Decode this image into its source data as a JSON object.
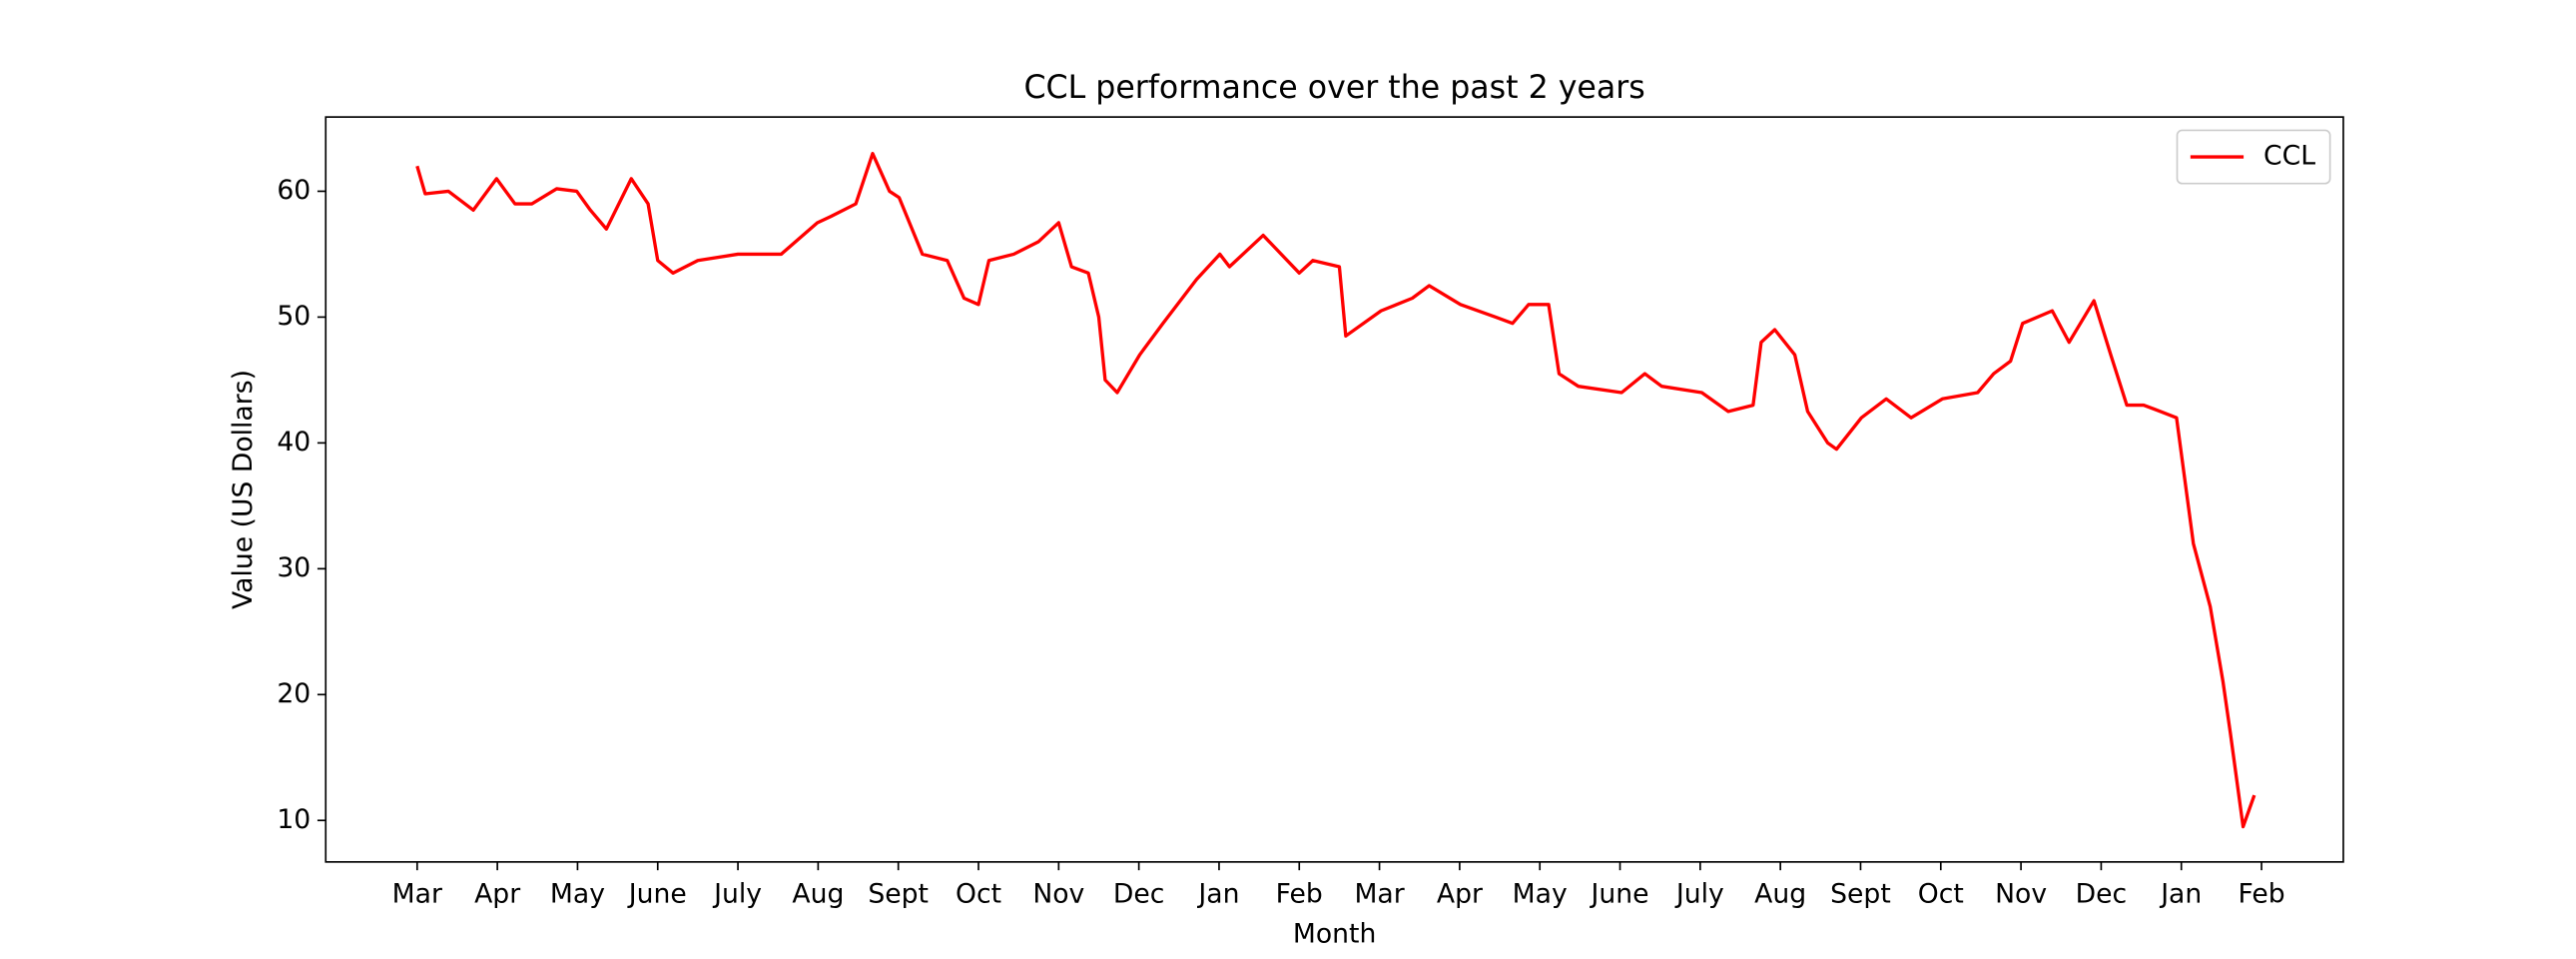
{
  "chart_data": {
    "type": "line",
    "title": "CCL performance over the past 2 years",
    "x_label": "Month",
    "y_label": "Value (US Dollars)",
    "xlim": [
      -1.14,
      24.02
    ],
    "ylim": [
      6.7,
      65.9
    ],
    "xticks": [
      {
        "value": 0,
        "label": "Mar"
      },
      {
        "value": 1,
        "label": "Apr"
      },
      {
        "value": 2,
        "label": "May"
      },
      {
        "value": 3,
        "label": "June"
      },
      {
        "value": 4,
        "label": "July"
      },
      {
        "value": 5,
        "label": "Aug"
      },
      {
        "value": 6,
        "label": "Sept"
      },
      {
        "value": 7,
        "label": "Oct"
      },
      {
        "value": 8,
        "label": "Nov"
      },
      {
        "value": 9,
        "label": "Dec"
      },
      {
        "value": 10,
        "label": "Jan"
      },
      {
        "value": 11,
        "label": "Feb"
      },
      {
        "value": 12,
        "label": "Mar"
      },
      {
        "value": 13,
        "label": "Apr"
      },
      {
        "value": 14,
        "label": "May"
      },
      {
        "value": 15,
        "label": "June"
      },
      {
        "value": 16,
        "label": "July"
      },
      {
        "value": 17,
        "label": "Aug"
      },
      {
        "value": 18,
        "label": "Sept"
      },
      {
        "value": 19,
        "label": "Oct"
      },
      {
        "value": 20,
        "label": "Nov"
      },
      {
        "value": 21,
        "label": "Dec"
      },
      {
        "value": 22,
        "label": "Jan"
      },
      {
        "value": 23,
        "label": "Feb"
      }
    ],
    "yticks": [
      10,
      20,
      30,
      40,
      50,
      60
    ],
    "grid": false,
    "legend": "upper right",
    "x": [
      0,
      0.1,
      0.39,
      0.7,
      0.99,
      1.22,
      1.43,
      1.74,
      1.99,
      2.16,
      2.36,
      2.67,
      2.88,
      3.0,
      3.19,
      3.5,
      4.0,
      4.54,
      4.99,
      5.16,
      5.47,
      5.68,
      5.89,
      6.01,
      6.3,
      6.61,
      6.82,
      7.0,
      7.13,
      7.44,
      7.75,
      8.0,
      8.16,
      8.37,
      8.5,
      8.58,
      8.73,
      9.01,
      9.3,
      9.72,
      10.01,
      10.13,
      10.55,
      11.0,
      11.17,
      11.5,
      11.58,
      12.02,
      12.41,
      12.62,
      13.01,
      13.45,
      13.66,
      13.86,
      14.11,
      14.24,
      14.48,
      15.02,
      15.31,
      15.52,
      16.02,
      16.35,
      16.66,
      16.76,
      16.93,
      17.18,
      17.34,
      17.59,
      17.7,
      18.01,
      18.32,
      18.63,
      19.02,
      19.46,
      19.66,
      19.87,
      20.02,
      20.39,
      20.6,
      20.91,
      21.12,
      21.32,
      21.53,
      21.74,
      21.94,
      22.15,
      22.36,
      22.52,
      22.61,
      22.77,
      22.91
    ],
    "series": [
      {
        "name": "CCL",
        "color": "#ff0000",
        "values": [
          62,
          59.8,
          60,
          58.5,
          61,
          59,
          59,
          60.2,
          60,
          58.5,
          57,
          61,
          59,
          54.5,
          53.5,
          54.5,
          55,
          55,
          57.5,
          58,
          59,
          63,
          60,
          59.5,
          55,
          54.5,
          51.5,
          51,
          54.5,
          55,
          56,
          57.5,
          54,
          53.5,
          50,
          45,
          44,
          47,
          49.5,
          53,
          55,
          54,
          56.5,
          53.5,
          54.5,
          54,
          48.5,
          50.5,
          51.5,
          52.5,
          51,
          50,
          49.5,
          51,
          51,
          45.5,
          44.5,
          44,
          45.5,
          44.5,
          44,
          42.5,
          43,
          48,
          49,
          47,
          42.5,
          40,
          39.5,
          42,
          43.5,
          42,
          43.5,
          44,
          45.5,
          46.5,
          49.5,
          50.5,
          48,
          51.3,
          47,
          43,
          43,
          42.5,
          42,
          32,
          27,
          21,
          17,
          9.5,
          12
        ]
      }
    ]
  }
}
